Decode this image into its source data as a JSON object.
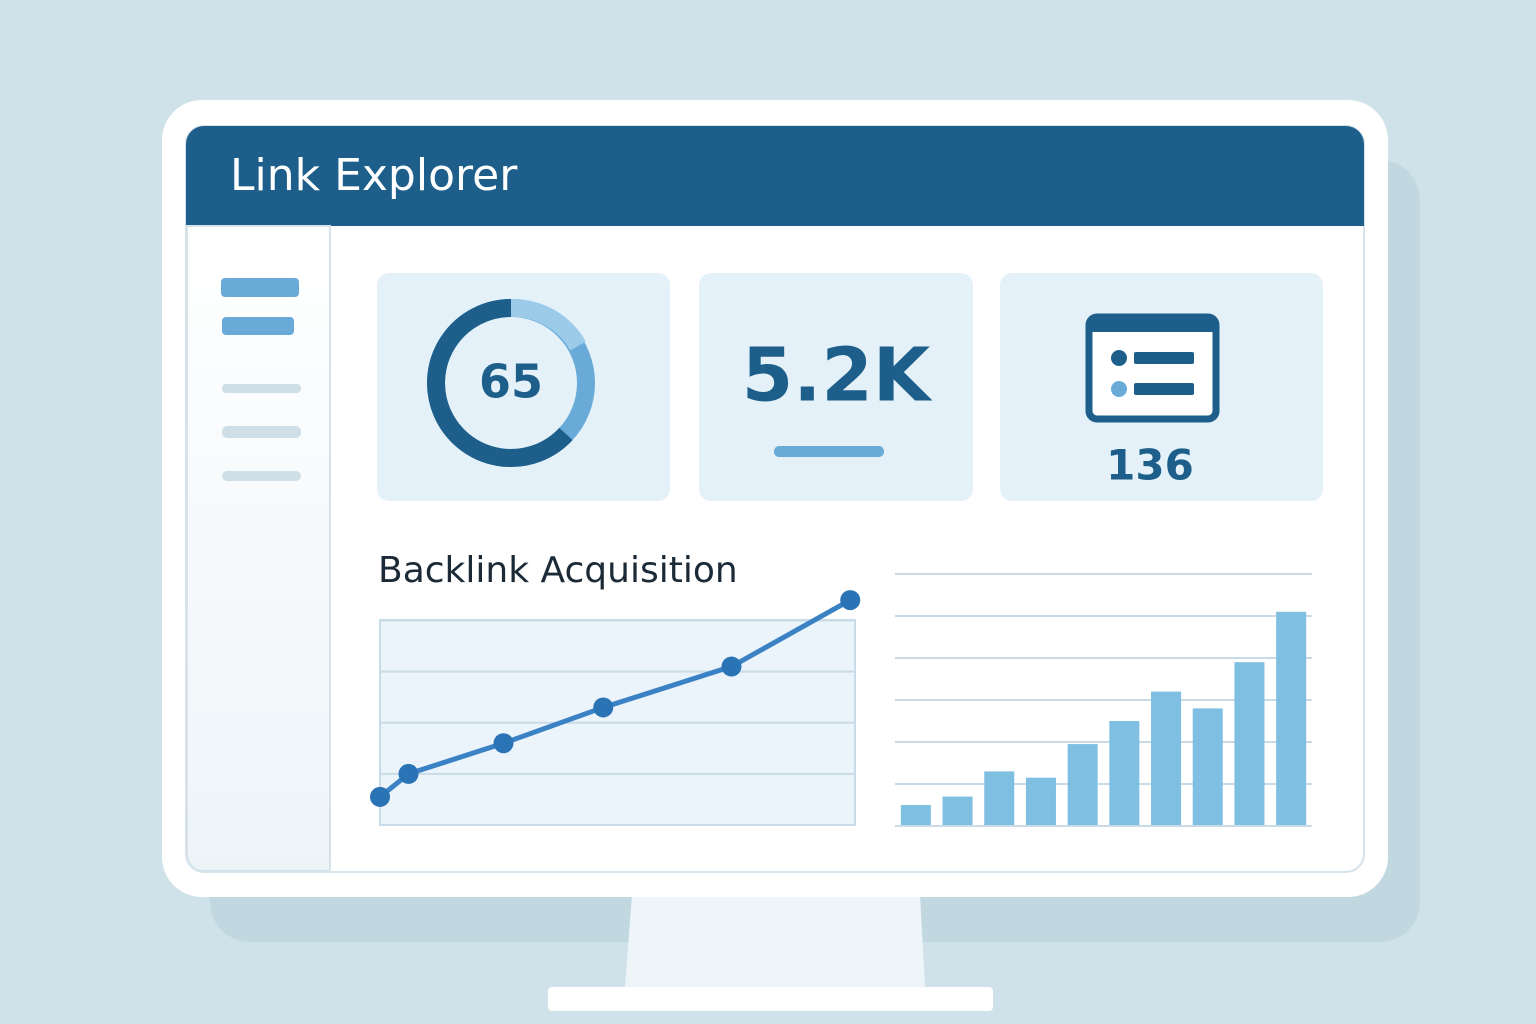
{
  "header": {
    "title": "Link Explorer"
  },
  "cards": [
    {
      "value": "65"
    },
    {
      "value": "5.2K"
    },
    {
      "value": "136"
    }
  ],
  "chart_data": [
    {
      "type": "line",
      "title": "Backlink Acquisition",
      "x": [
        0,
        0.6,
        2.6,
        4.7,
        7.4,
        9.9
      ],
      "values": [
        0.55,
        1.0,
        1.6,
        2.3,
        3.1,
        4.4
      ],
      "xlim": [
        0,
        10
      ],
      "ylim": [
        0,
        4.5
      ],
      "yticks": [
        1,
        2,
        3,
        4
      ],
      "color": "#3b82c4",
      "grid": true
    },
    {
      "type": "bar",
      "values": [
        0.5,
        0.7,
        1.3,
        1.15,
        1.95,
        2.5,
        3.2,
        2.8,
        3.9,
        5.1
      ],
      "ylim": [
        0,
        6
      ],
      "yticks": [
        1,
        2,
        3,
        4,
        5,
        6
      ],
      "color": "#7fbfe2",
      "grid": true
    }
  ]
}
